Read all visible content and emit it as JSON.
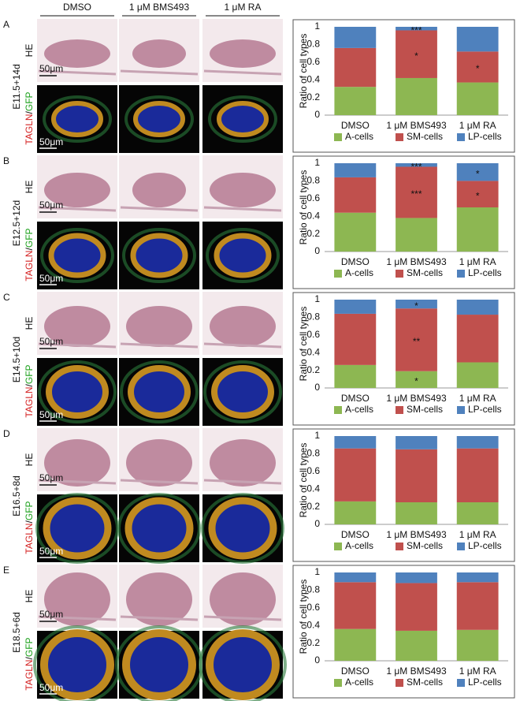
{
  "figure": {
    "column_headers": [
      "DMSO",
      "1 μM BMS493",
      "1 μM RA"
    ],
    "rows": [
      {
        "letter": "A",
        "stage": "E11.5+14d",
        "he_label": "HE",
        "stain": [
          "TAGLN",
          "/",
          "GFP"
        ],
        "he_scale": "50μm",
        "if_scale": "50μm"
      },
      {
        "letter": "B",
        "stage": "E12.5+12d",
        "he_label": "HE",
        "stain": [
          "TAGLN",
          "/",
          "GFP"
        ],
        "he_scale": "50μm",
        "if_scale": "50μm"
      },
      {
        "letter": "C",
        "stage": "E14.5+10d",
        "he_label": "HE",
        "stain": [
          "TAGLN",
          "/",
          "GFP"
        ],
        "he_scale": "50μm",
        "if_scale": "50μm"
      },
      {
        "letter": "D",
        "stage": "E16.5+8d",
        "he_label": "HE",
        "stain": [
          "TAGLN",
          "/",
          "GFP"
        ],
        "he_scale": "50μm",
        "if_scale": "50μm"
      },
      {
        "letter": "E",
        "stage": "E18.5+6d",
        "he_label": "HE",
        "stain": [
          "TAGLN",
          "/",
          "GFP"
        ],
        "he_scale": "50μm",
        "if_scale": "50μm"
      }
    ]
  },
  "chart_data": [
    {
      "type": "stacked_bar",
      "ylabel": "Ratio of cell types",
      "categories": [
        "DMSO",
        "1 μM BMS493",
        "1 μM RA"
      ],
      "ylim": [
        0,
        1
      ],
      "yticks": [
        0,
        0.2,
        0.4,
        0.6,
        0.8,
        1
      ],
      "grid": false,
      "legend": "bottom",
      "series": [
        {
          "name": "A-cells",
          "color": "#8db752",
          "values": [
            0.32,
            0.42,
            0.37
          ],
          "significance": [
            null,
            null,
            null
          ]
        },
        {
          "name": "SM-cells",
          "color": "#c0504d",
          "values": [
            0.44,
            0.54,
            0.35
          ],
          "significance": [
            null,
            "*",
            "*"
          ]
        },
        {
          "name": "LP-cells",
          "color": "#4f81bd",
          "values": [
            0.24,
            0.04,
            0.28
          ],
          "significance": [
            null,
            "***",
            null
          ]
        }
      ]
    },
    {
      "type": "stacked_bar",
      "ylabel": "Ratio of cell types",
      "categories": [
        "DMSO",
        "1 μM BMS493",
        "1 μM RA"
      ],
      "ylim": [
        0,
        1
      ],
      "yticks": [
        0,
        0.2,
        0.4,
        0.6,
        0.8,
        1
      ],
      "grid": false,
      "legend": "bottom",
      "series": [
        {
          "name": "A-cells",
          "color": "#8db752",
          "values": [
            0.44,
            0.38,
            0.5
          ],
          "significance": [
            null,
            null,
            null
          ]
        },
        {
          "name": "SM-cells",
          "color": "#c0504d",
          "values": [
            0.4,
            0.58,
            0.3
          ],
          "significance": [
            null,
            "***",
            "*"
          ]
        },
        {
          "name": "LP-cells",
          "color": "#4f81bd",
          "values": [
            0.16,
            0.04,
            0.2
          ],
          "significance": [
            null,
            "***",
            "*"
          ]
        }
      ]
    },
    {
      "type": "stacked_bar",
      "ylabel": "Ratio of cell types",
      "categories": [
        "DMSO",
        "1 μM BMS493",
        "1 μM RA"
      ],
      "ylim": [
        0,
        1
      ],
      "yticks": [
        0,
        0.2,
        0.4,
        0.6,
        0.8,
        1
      ],
      "grid": false,
      "legend": "bottom",
      "series": [
        {
          "name": "A-cells",
          "color": "#8db752",
          "values": [
            0.26,
            0.19,
            0.29
          ],
          "significance": [
            null,
            "*",
            null
          ]
        },
        {
          "name": "SM-cells",
          "color": "#c0504d",
          "values": [
            0.58,
            0.71,
            0.54
          ],
          "significance": [
            null,
            "**",
            null
          ]
        },
        {
          "name": "LP-cells",
          "color": "#4f81bd",
          "values": [
            0.16,
            0.1,
            0.17
          ],
          "significance": [
            null,
            "*",
            null
          ]
        }
      ]
    },
    {
      "type": "stacked_bar",
      "ylabel": "Ratio of cell types",
      "categories": [
        "DMSO",
        "1 μM BMS493",
        "1 μM RA"
      ],
      "ylim": [
        0,
        1
      ],
      "yticks": [
        0,
        0.2,
        0.4,
        0.6,
        0.8,
        1
      ],
      "grid": false,
      "legend": "bottom",
      "series": [
        {
          "name": "A-cells",
          "color": "#8db752",
          "values": [
            0.26,
            0.25,
            0.25
          ],
          "significance": [
            null,
            null,
            null
          ]
        },
        {
          "name": "SM-cells",
          "color": "#c0504d",
          "values": [
            0.6,
            0.6,
            0.61
          ],
          "significance": [
            null,
            null,
            null
          ]
        },
        {
          "name": "LP-cells",
          "color": "#4f81bd",
          "values": [
            0.14,
            0.15,
            0.14
          ],
          "significance": [
            null,
            null,
            null
          ]
        }
      ]
    },
    {
      "type": "stacked_bar",
      "ylabel": "Ratio of cell types",
      "categories": [
        "DMSO",
        "1 μM BMS493",
        "1 μM RA"
      ],
      "ylim": [
        0,
        1
      ],
      "yticks": [
        0,
        0.2,
        0.4,
        0.6,
        0.8,
        1
      ],
      "grid": false,
      "legend": "bottom",
      "series": [
        {
          "name": "A-cells",
          "color": "#8db752",
          "values": [
            0.36,
            0.34,
            0.35
          ],
          "significance": [
            null,
            null,
            null
          ]
        },
        {
          "name": "SM-cells",
          "color": "#c0504d",
          "values": [
            0.53,
            0.54,
            0.54
          ],
          "significance": [
            null,
            null,
            null
          ]
        },
        {
          "name": "LP-cells",
          "color": "#4f81bd",
          "values": [
            0.11,
            0.12,
            0.11
          ],
          "significance": [
            null,
            null,
            null
          ]
        }
      ]
    }
  ]
}
